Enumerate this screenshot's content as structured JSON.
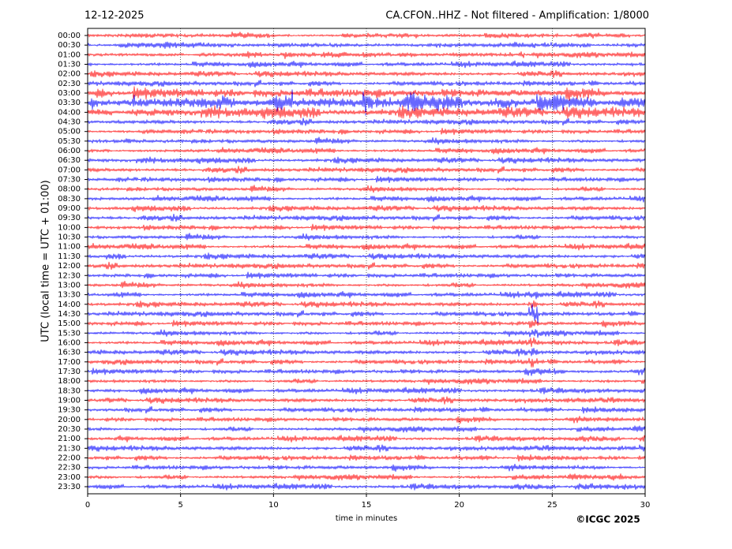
{
  "chart_data": {
    "type": "helicorder",
    "date": "12-12-2025",
    "title": "CA.CFON..HHZ - Not filtered - Amplification: 1/8000",
    "y_label": "UTC (local time = UTC + 01:00)",
    "x_label": "time in minutes",
    "credit": "©ICGC 2025",
    "categories": [
      "00:00",
      "00:30",
      "01:00",
      "01:30",
      "02:00",
      "02:30",
      "03:00",
      "03:30",
      "04:00",
      "04:30",
      "05:00",
      "05:30",
      "06:00",
      "06:30",
      "07:00",
      "07:30",
      "08:00",
      "08:30",
      "09:00",
      "09:30",
      "10:00",
      "10:30",
      "11:00",
      "11:30",
      "12:00",
      "12:30",
      "13:00",
      "13:30",
      "14:00",
      "14:30",
      "15:00",
      "15:30",
      "16:00",
      "16:30",
      "17:00",
      "17:30",
      "18:00",
      "18:30",
      "19:00",
      "19:30",
      "20:00",
      "20:30",
      "21:00",
      "21:30",
      "22:00",
      "22:30",
      "23:00",
      "23:30"
    ],
    "colors": [
      "#ff0000",
      "#0000ff"
    ],
    "xlim": [
      0,
      30
    ],
    "xticks": [
      0,
      5,
      10,
      15,
      20,
      25,
      30
    ],
    "grid": true
  }
}
